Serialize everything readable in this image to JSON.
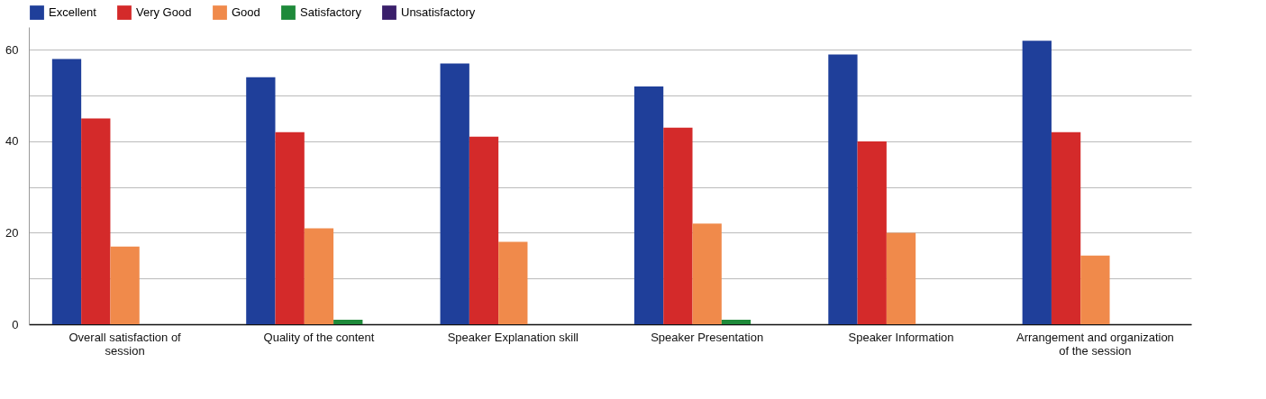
{
  "chart_data": {
    "type": "bar",
    "categories": [
      "Overall satisfaction of session",
      "Quality of the content",
      "Speaker Explanation skill",
      "Speaker Presentation",
      "Speaker Information",
      "Arrangement and organization of the session"
    ],
    "series": [
      {
        "name": "Excellent",
        "color": "#1f3f9a",
        "values": [
          58,
          54,
          57,
          52,
          59,
          62
        ]
      },
      {
        "name": "Very Good",
        "color": "#d42a2a",
        "values": [
          45,
          42,
          41,
          43,
          40,
          42
        ]
      },
      {
        "name": "Good",
        "color": "#f08a4b",
        "values": [
          17,
          21,
          18,
          22,
          20,
          15
        ]
      },
      {
        "name": "Satisfactory",
        "color": "#1e8a3a",
        "values": [
          0,
          1,
          0,
          1,
          0,
          0
        ]
      },
      {
        "name": "Unsatisfactory",
        "color": "#3a1f6b",
        "values": [
          0,
          0,
          0,
          0,
          0,
          0
        ]
      }
    ],
    "ylim": [
      0,
      65
    ],
    "yticks": [
      0,
      {
        "value": 10,
        "label": null
      },
      20,
      {
        "value": 30,
        "label": null
      },
      40,
      {
        "value": 50,
        "label": null
      },
      60
    ],
    "grid": "y",
    "legend": "top left"
  }
}
